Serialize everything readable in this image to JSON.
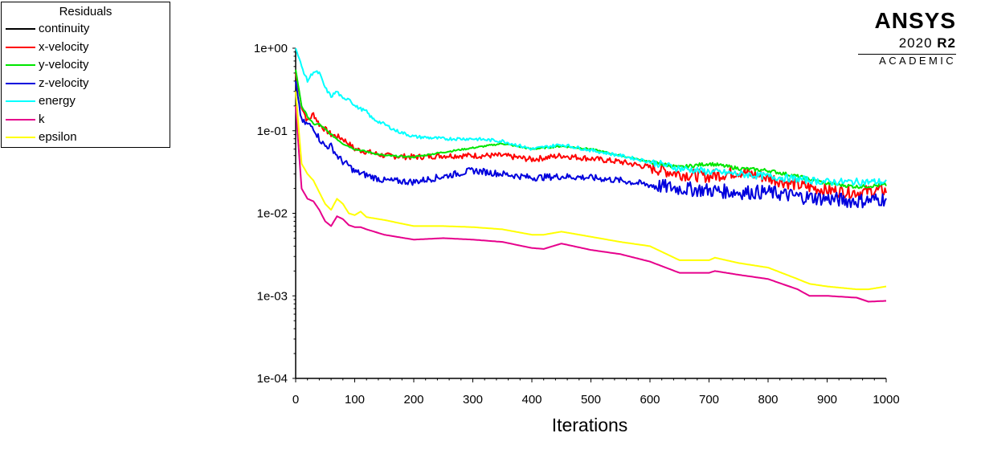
{
  "chart_data": {
    "type": "line",
    "title": "",
    "xlabel": "Iterations",
    "ylabel": "",
    "yscale": "log",
    "xlim": [
      0,
      1000
    ],
    "ylim": [
      0.0001,
      1
    ],
    "x_ticks": [
      "0",
      "100",
      "200",
      "300",
      "400",
      "500",
      "600",
      "700",
      "800",
      "900",
      "1000"
    ],
    "y_ticks": [
      "1e+00",
      "1e-01",
      "1e-02",
      "1e-03",
      "1e-04"
    ],
    "legend_title": "Residuals",
    "legend_position": "top-left",
    "series": [
      {
        "name": "continuity",
        "color": "#000000",
        "x": [],
        "y": []
      },
      {
        "name": "x-velocity",
        "color": "#ff0000",
        "x": [
          0,
          10,
          20,
          30,
          40,
          60,
          80,
          100,
          150,
          200,
          250,
          300,
          350,
          400,
          450,
          500,
          550,
          600,
          650,
          700,
          750,
          800,
          850,
          900,
          950,
          1000
        ],
        "y": [
          0.5,
          0.2,
          0.13,
          0.16,
          0.12,
          0.09,
          0.08,
          0.06,
          0.05,
          0.048,
          0.05,
          0.05,
          0.05,
          0.045,
          0.05,
          0.046,
          0.042,
          0.036,
          0.03,
          0.028,
          0.032,
          0.027,
          0.022,
          0.019,
          0.018,
          0.019
        ]
      },
      {
        "name": "y-velocity",
        "color": "#00e600",
        "x": [
          0,
          10,
          20,
          30,
          40,
          60,
          80,
          100,
          150,
          200,
          250,
          300,
          350,
          400,
          450,
          500,
          550,
          600,
          650,
          700,
          750,
          800,
          850,
          900,
          950,
          1000
        ],
        "y": [
          0.55,
          0.2,
          0.15,
          0.12,
          0.12,
          0.09,
          0.07,
          0.06,
          0.05,
          0.048,
          0.055,
          0.062,
          0.07,
          0.06,
          0.065,
          0.06,
          0.05,
          0.042,
          0.036,
          0.04,
          0.035,
          0.033,
          0.028,
          0.023,
          0.021,
          0.022
        ]
      },
      {
        "name": "z-velocity",
        "color": "#0000dd",
        "x": [
          0,
          10,
          20,
          30,
          40,
          50,
          60,
          70,
          80,
          90,
          100,
          150,
          200,
          250,
          300,
          350,
          400,
          450,
          500,
          550,
          600,
          650,
          700,
          750,
          800,
          850,
          900,
          950,
          1000
        ],
        "y": [
          0.4,
          0.13,
          0.12,
          0.11,
          0.08,
          0.065,
          0.065,
          0.05,
          0.042,
          0.038,
          0.032,
          0.025,
          0.024,
          0.028,
          0.033,
          0.03,
          0.027,
          0.028,
          0.027,
          0.025,
          0.022,
          0.02,
          0.019,
          0.018,
          0.018,
          0.016,
          0.015,
          0.014,
          0.015
        ]
      },
      {
        "name": "energy",
        "color": "#00ffff",
        "x": [
          0,
          10,
          20,
          30,
          40,
          50,
          60,
          70,
          80,
          90,
          100,
          120,
          130,
          150,
          170,
          200,
          250,
          300,
          350,
          400,
          450,
          500,
          550,
          600,
          650,
          700,
          750,
          800,
          850,
          900,
          950,
          1000
        ],
        "y": [
          1.0,
          0.6,
          0.4,
          0.52,
          0.5,
          0.33,
          0.26,
          0.3,
          0.24,
          0.25,
          0.2,
          0.17,
          0.14,
          0.12,
          0.1,
          0.085,
          0.08,
          0.08,
          0.075,
          0.06,
          0.068,
          0.058,
          0.05,
          0.042,
          0.035,
          0.032,
          0.03,
          0.028,
          0.026,
          0.024,
          0.024,
          0.024
        ]
      },
      {
        "name": "k",
        "color": "#e6008c",
        "x": [
          0,
          10,
          20,
          30,
          40,
          50,
          60,
          70,
          80,
          90,
          100,
          110,
          120,
          150,
          200,
          250,
          300,
          350,
          400,
          420,
          450,
          500,
          550,
          600,
          650,
          700,
          710,
          750,
          800,
          850,
          870,
          900,
          950,
          970,
          1000
        ],
        "y": [
          0.2,
          0.02,
          0.015,
          0.014,
          0.011,
          0.008,
          0.007,
          0.0092,
          0.0085,
          0.0072,
          0.0068,
          0.0068,
          0.0064,
          0.0055,
          0.0048,
          0.005,
          0.0048,
          0.0045,
          0.0038,
          0.0037,
          0.0043,
          0.0036,
          0.0032,
          0.0026,
          0.0019,
          0.0019,
          0.002,
          0.0018,
          0.0016,
          0.0012,
          0.001,
          0.001,
          0.00095,
          0.00085,
          0.00087
        ]
      },
      {
        "name": "epsilon",
        "color": "#ffff00",
        "x": [
          0,
          10,
          20,
          30,
          40,
          50,
          60,
          70,
          80,
          90,
          100,
          110,
          120,
          150,
          200,
          250,
          300,
          350,
          400,
          420,
          450,
          500,
          550,
          600,
          650,
          700,
          710,
          750,
          800,
          850,
          870,
          900,
          950,
          970,
          1000
        ],
        "y": [
          0.3,
          0.04,
          0.03,
          0.025,
          0.018,
          0.013,
          0.011,
          0.015,
          0.013,
          0.01,
          0.0095,
          0.0105,
          0.009,
          0.0083,
          0.007,
          0.007,
          0.0068,
          0.0064,
          0.0055,
          0.0055,
          0.006,
          0.0052,
          0.0045,
          0.004,
          0.0027,
          0.0027,
          0.0029,
          0.0025,
          0.0022,
          0.0016,
          0.0014,
          0.0013,
          0.0012,
          0.0012,
          0.0013
        ]
      }
    ]
  },
  "legend": {
    "title": "Residuals",
    "items": [
      "continuity",
      "x-velocity",
      "y-velocity",
      "z-velocity",
      "energy",
      "k",
      "epsilon"
    ]
  },
  "logo": {
    "brand": "ANSYS",
    "version_year": "2020",
    "version_release": "R2",
    "edition": "ACADEMIC"
  }
}
